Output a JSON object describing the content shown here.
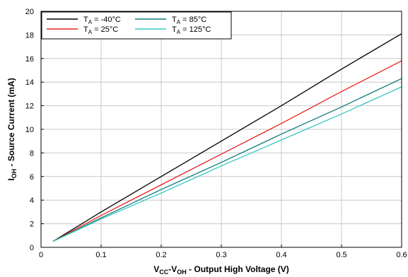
{
  "chart_data": {
    "type": "line",
    "xlabel": {
      "main": "V",
      "sub1": "CC",
      "mid": "-V",
      "sub2": "OH",
      "rest": " - Output High Voltage (V)"
    },
    "ylabel": {
      "main": "I",
      "sub": "OH",
      "rest": " - Source Current (mA)"
    },
    "xlim": [
      0,
      0.6
    ],
    "ylim": [
      0,
      20
    ],
    "xticks": [
      0,
      0.1,
      0.2,
      0.3,
      0.4,
      0.5,
      0.6
    ],
    "xtick_labels": [
      "0",
      "0.1",
      "0.2",
      "0.3",
      "0.4",
      "0.5",
      "0.6"
    ],
    "yticks": [
      0,
      2,
      4,
      6,
      8,
      10,
      12,
      14,
      16,
      18,
      20
    ],
    "ytick_labels": [
      "0",
      "2",
      "4",
      "6",
      "8",
      "10",
      "12",
      "14",
      "16",
      "18",
      "20"
    ],
    "grid": true,
    "legend_position": "top-left",
    "series": [
      {
        "label_main": "T",
        "label_sub": "A",
        "label_rest": " = -40°C",
        "color": "#000000",
        "x": [
          0.02,
          0.1,
          0.2,
          0.3,
          0.4,
          0.5,
          0.6
        ],
        "y": [
          0.5,
          3.0,
          6.0,
          9.0,
          12.0,
          15.1,
          18.1
        ]
      },
      {
        "label_main": "T",
        "label_sub": "A",
        "label_rest": " = 25°C",
        "color": "#e8201c",
        "x": [
          0.02,
          0.1,
          0.2,
          0.3,
          0.4,
          0.5,
          0.6
        ],
        "y": [
          0.5,
          2.7,
          5.3,
          7.9,
          10.5,
          13.2,
          15.8
        ]
      },
      {
        "label_main": "T",
        "label_sub": "A",
        "label_rest": " = 85°C",
        "color": "#0e7a7a",
        "x": [
          0.02,
          0.1,
          0.2,
          0.3,
          0.4,
          0.5,
          0.6
        ],
        "y": [
          0.5,
          2.5,
          4.9,
          7.2,
          9.6,
          11.9,
          14.3
        ]
      },
      {
        "label_main": "T",
        "label_sub": "A",
        "label_rest": " = 125°C",
        "color": "#36c8c0",
        "x": [
          0.02,
          0.1,
          0.2,
          0.3,
          0.4,
          0.5,
          0.6
        ],
        "y": [
          0.5,
          2.4,
          4.6,
          6.9,
          9.1,
          11.3,
          13.6
        ]
      }
    ]
  }
}
